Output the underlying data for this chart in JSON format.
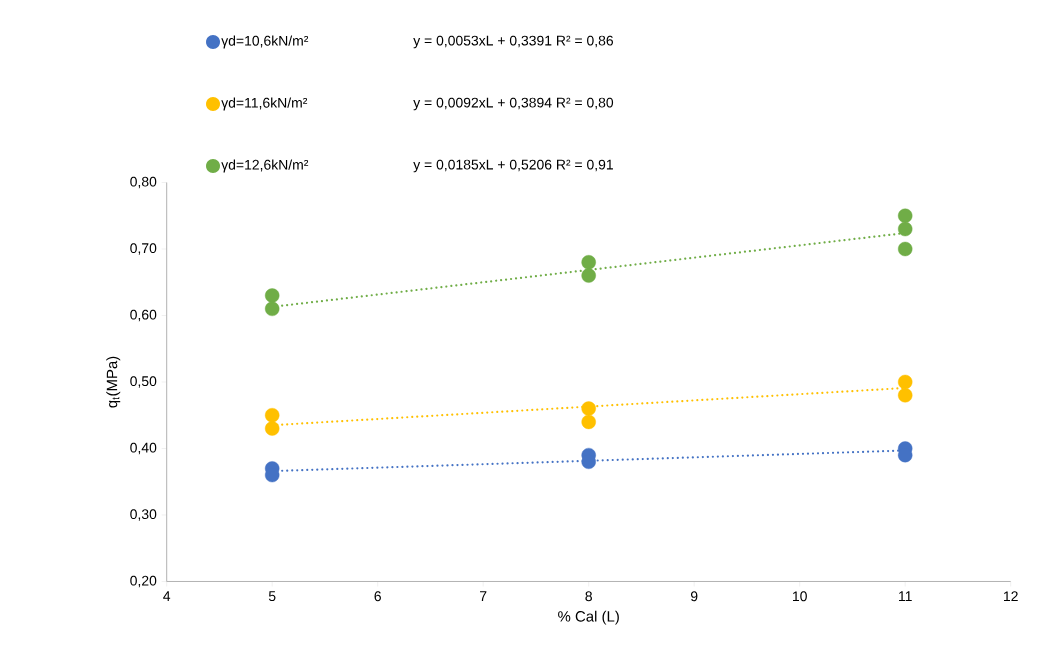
{
  "chart_data": {
    "type": "scatter",
    "xlabel": "% Cal (L)",
    "ylabel": "q$_{t}$(MPa)",
    "xlim": [
      4,
      12
    ],
    "xticks": [
      4,
      5,
      6,
      7,
      8,
      9,
      10,
      11,
      12
    ],
    "ylim": [
      0.2,
      0.8
    ],
    "yticks": [
      {
        "value": 0.2,
        "label": "0,20"
      },
      {
        "value": 0.3,
        "label": "0,30"
      },
      {
        "value": 0.4,
        "label": "0,40"
      },
      {
        "value": 0.5,
        "label": "0,50"
      },
      {
        "value": 0.6,
        "label": "0,60"
      },
      {
        "value": 0.7,
        "label": "0,70"
      },
      {
        "value": 0.8,
        "label": "0,80"
      }
    ],
    "grid": false,
    "legend": "top",
    "marker": "circle",
    "series": [
      {
        "name": "γd=10,6kN/m²",
        "color": "#4472c4",
        "x": [
          5,
          5,
          8,
          8,
          11,
          11
        ],
        "values": [
          0.37,
          0.36,
          0.39,
          0.38,
          0.4,
          0.39
        ]
      },
      {
        "name": "γd=11,6kN/m²",
        "color": "#ffc000",
        "x": [
          5,
          5,
          8,
          8,
          11,
          11
        ],
        "values": [
          0.45,
          0.43,
          0.46,
          0.44,
          0.5,
          0.48
        ]
      },
      {
        "name": "γd=12,6kN/m²",
        "color": "#70ad47",
        "x": [
          5,
          5,
          8,
          8,
          11,
          11,
          11
        ],
        "values": [
          0.63,
          0.61,
          0.68,
          0.66,
          0.75,
          0.73,
          0.7
        ]
      },
      {
        "type": "line",
        "color": "#4472c4",
        "line_style": "dotted",
        "marker": "none",
        "x": [
          5,
          11
        ],
        "values": [
          0.366,
          0.397
        ]
      },
      {
        "type": "line",
        "color": "#ffc000",
        "line_style": "dotted",
        "marker": "none",
        "x": [
          5,
          11
        ],
        "values": [
          0.435,
          0.491
        ]
      },
      {
        "type": "line",
        "color": "#70ad47",
        "line_style": "dotted",
        "marker": "none",
        "x": [
          5,
          11
        ],
        "values": [
          0.613,
          0.724
        ]
      }
    ],
    "annotations": [
      "y = 0,0053xL + 0,3391  R² = 0,86",
      "y = 0,0092xL + 0,3894  R² = 0,80",
      "y = 0,0185xL + 0,5206  R² = 0,91"
    ]
  }
}
